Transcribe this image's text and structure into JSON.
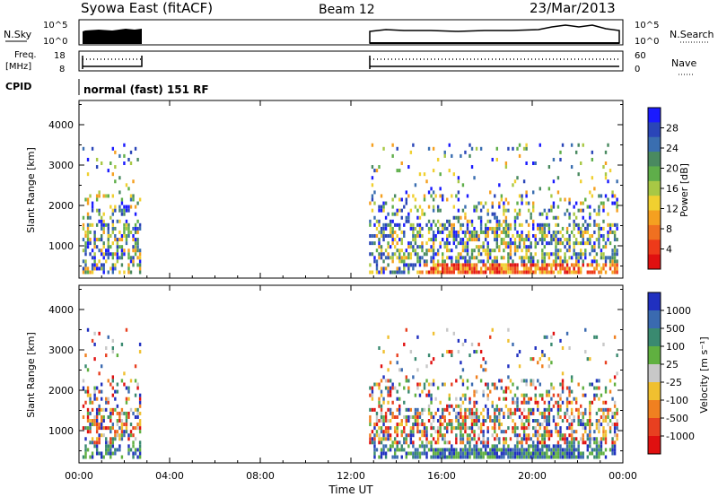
{
  "header": {
    "title": "Syowa East (fitACF)",
    "beam": "Beam 12",
    "date": "23/Mar/2013"
  },
  "noise_panel": {
    "left_label": "N.Sky",
    "left_ticks": [
      "10^5",
      "10^0"
    ],
    "right_ticks": [
      "10^5",
      "10^0"
    ],
    "right_label": "N.Search"
  },
  "freq_panel": {
    "left_label_1": "Freq.",
    "left_label_2": "[MHz]",
    "left_ticks": [
      "18",
      "8"
    ],
    "right_ticks": [
      "60",
      "0"
    ],
    "right_label": "Nave"
  },
  "cpid": {
    "label": "CPID",
    "value": "normal (fast) 151 RF"
  },
  "chart_data": [
    {
      "type": "heatmap",
      "parameter": "Power",
      "ylabel": "Slant Range [km]",
      "ylim": [
        200,
        4600
      ],
      "yticks": [
        "1000",
        "2000",
        "3000",
        "4000"
      ],
      "xlim": [
        0,
        24
      ],
      "colorbar": {
        "label": "Power [dB]",
        "ticks": [
          "4",
          "8",
          "12",
          "16",
          "20",
          "24",
          "28"
        ],
        "colors": [
          "#1a1aff",
          "#2a45b8",
          "#3a6eb0",
          "#4a8a60",
          "#5fae4a",
          "#a8c845",
          "#f0d030",
          "#f5a020",
          "#f07020",
          "#ee3a1a",
          "#e01010"
        ]
      },
      "data_gap_hours": [
        2.7,
        12.8
      ]
    },
    {
      "type": "heatmap",
      "parameter": "Velocity",
      "ylabel": "Slant Range [km]",
      "ylim": [
        200,
        4600
      ],
      "yticks": [
        "1000",
        "2000",
        "3000",
        "4000"
      ],
      "xlim": [
        0,
        24
      ],
      "colorbar": {
        "label": "Velocity [m s⁻¹]",
        "ticks": [
          "1000",
          "500",
          "100",
          "25",
          "-25",
          "-100",
          "-500",
          "-1000"
        ],
        "colors": [
          "#2030c0",
          "#3a6ab0",
          "#3a8a70",
          "#60b040",
          "#c8c8c8",
          "#f0c030",
          "#f08020",
          "#e84020",
          "#e01010"
        ]
      },
      "data_gap_hours": [
        2.7,
        12.8
      ]
    }
  ],
  "x_axis": {
    "ticks": [
      "00:00",
      "04:00",
      "08:00",
      "12:00",
      "16:00",
      "20:00",
      "00:00"
    ],
    "label": "Time UT"
  }
}
